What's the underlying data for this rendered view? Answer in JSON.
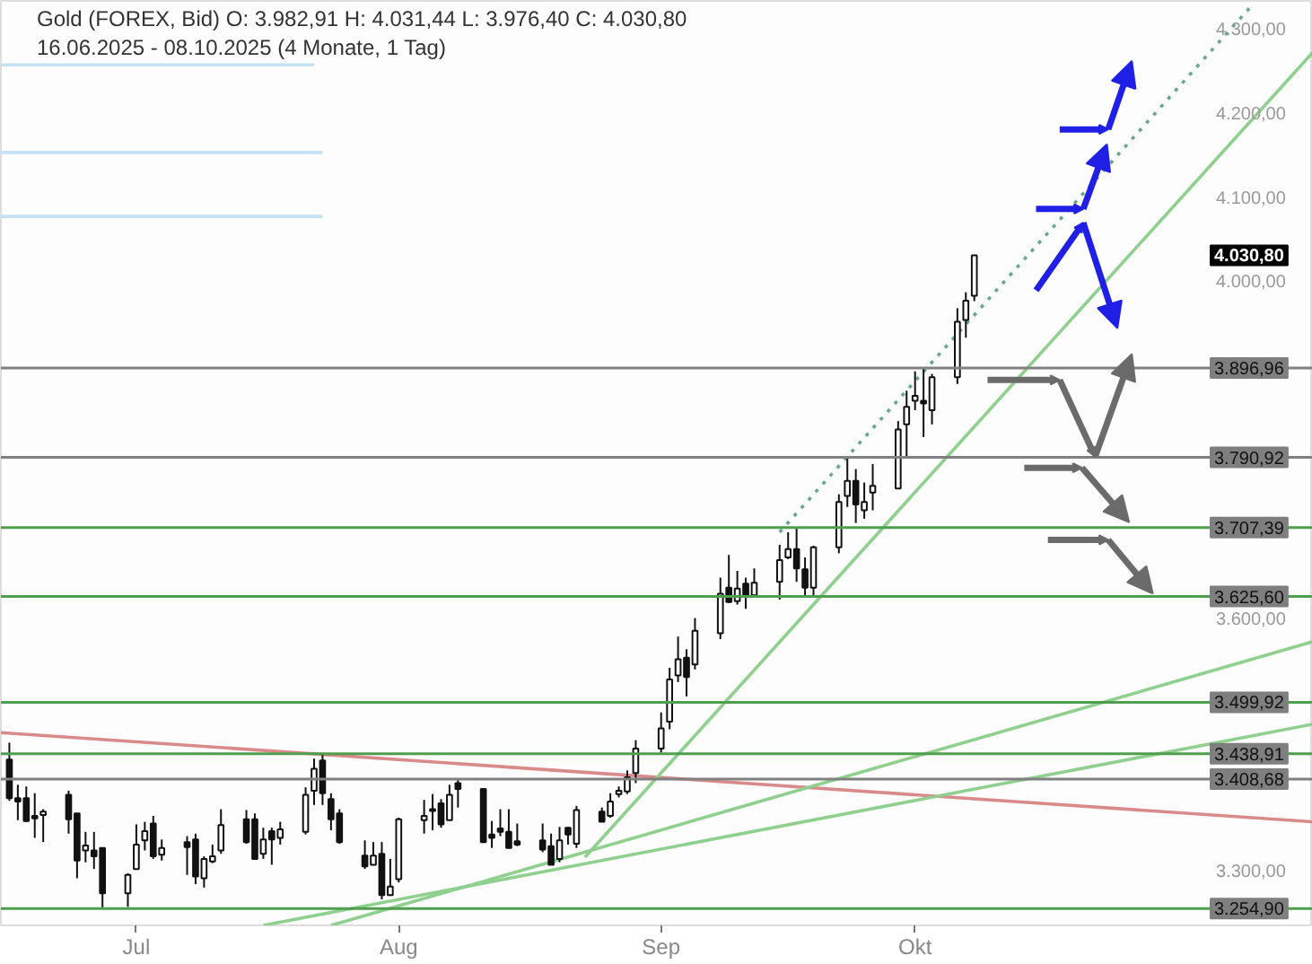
{
  "chart_data": {
    "type": "candlestick",
    "title": "Gold (FOREX, Bid)  O: 3.982,91  H: 4.031,44  L: 3.976,40  C: 4.030,80",
    "subtitle": "16.06.2025 - 08.10.2025   (4 Monate, 1 Tag)",
    "x": [
      "2025-06-16",
      "2025-06-17",
      "2025-06-18",
      "2025-06-19",
      "2025-06-20",
      "2025-06-23",
      "2025-06-24",
      "2025-06-25",
      "2025-06-26",
      "2025-06-27",
      "2025-06-30",
      "2025-07-01",
      "2025-07-02",
      "2025-07-03",
      "2025-07-04",
      "2025-07-07",
      "2025-07-08",
      "2025-07-09",
      "2025-07-10",
      "2025-07-11",
      "2025-07-14",
      "2025-07-15",
      "2025-07-16",
      "2025-07-17",
      "2025-07-18",
      "2025-07-21",
      "2025-07-22",
      "2025-07-23",
      "2025-07-24",
      "2025-07-25",
      "2025-07-28",
      "2025-07-29",
      "2025-07-30",
      "2025-07-31",
      "2025-08-01",
      "2025-08-04",
      "2025-08-05",
      "2025-08-06",
      "2025-08-07",
      "2025-08-08",
      "2025-08-11",
      "2025-08-12",
      "2025-08-13",
      "2025-08-14",
      "2025-08-15",
      "2025-08-18",
      "2025-08-19",
      "2025-08-20",
      "2025-08-21",
      "2025-08-22",
      "2025-08-25",
      "2025-08-26",
      "2025-08-27",
      "2025-08-28",
      "2025-08-29",
      "2025-09-01",
      "2025-09-02",
      "2025-09-03",
      "2025-09-04",
      "2025-09-05",
      "2025-09-08",
      "2025-09-09",
      "2025-09-10",
      "2025-09-11",
      "2025-09-12",
      "2025-09-15",
      "2025-09-16",
      "2025-09-17",
      "2025-09-18",
      "2025-09-19",
      "2025-09-22",
      "2025-09-23",
      "2025-09-24",
      "2025-09-25",
      "2025-09-26",
      "2025-09-29",
      "2025-09-30",
      "2025-10-01",
      "2025-10-02",
      "2025-10-03",
      "2025-10-06",
      "2025-10-07",
      "2025-10-08"
    ],
    "ohlc": [
      [
        3432,
        3452,
        3383,
        3386
      ],
      [
        3386,
        3402,
        3360,
        3382
      ],
      [
        3386,
        3400,
        3358,
        3359
      ],
      [
        3365,
        3392,
        3339,
        3362
      ],
      [
        3366,
        3373,
        3334,
        3370
      ],
      [
        3390,
        3395,
        3344,
        3361
      ],
      [
        3368,
        3368,
        3291,
        3312
      ],
      [
        3324,
        3346,
        3310,
        3330
      ],
      [
        3324,
        3346,
        3302,
        3317
      ],
      [
        3327,
        3327,
        3255,
        3273
      ],
      [
        3273,
        3297,
        3257,
        3295
      ],
      [
        3302,
        3355,
        3302,
        3331
      ],
      [
        3336,
        3358,
        3324,
        3347
      ],
      [
        3356,
        3365,
        3314,
        3317
      ],
      [
        3319,
        3337,
        3312,
        3327
      ],
      [
        3334,
        3341,
        3295,
        3328
      ],
      [
        3337,
        3344,
        3284,
        3293
      ],
      [
        3291,
        3317,
        3280,
        3314
      ],
      [
        3311,
        3331,
        3309,
        3317
      ],
      [
        3324,
        3373,
        3320,
        3354
      ],
      [
        3361,
        3372,
        3332,
        3334
      ],
      [
        3361,
        3368,
        3314,
        3314
      ],
      [
        3320,
        3351,
        3314,
        3337
      ],
      [
        3347,
        3351,
        3307,
        3337
      ],
      [
        3339,
        3358,
        3331,
        3349
      ],
      [
        3346,
        3399,
        3343,
        3390
      ],
      [
        3395,
        3433,
        3378,
        3421
      ],
      [
        3431,
        3439,
        3378,
        3392
      ],
      [
        3385,
        3392,
        3348,
        3361
      ],
      [
        3368,
        3373,
        3332,
        3334
      ],
      [
        3318,
        3336,
        3302,
        3305
      ],
      [
        3307,
        3334,
        3307,
        3318
      ],
      [
        3320,
        3334,
        3266,
        3271
      ],
      [
        3271,
        3314,
        3271,
        3281
      ],
      [
        3290,
        3363,
        3286,
        3361
      ],
      [
        3360,
        3384,
        3344,
        3365
      ],
      [
        3371,
        3391,
        3348,
        3373
      ],
      [
        3380,
        3385,
        3351,
        3355
      ],
      [
        3360,
        3402,
        3360,
        3390
      ],
      [
        3404,
        3409,
        3375,
        3397
      ],
      [
        3397,
        3397,
        3334,
        3334
      ],
      [
        3343,
        3359,
        3327,
        3339
      ],
      [
        3350,
        3373,
        3341,
        3346
      ],
      [
        3346,
        3373,
        3327,
        3327
      ],
      [
        3335,
        3356,
        3329,
        3331
      ],
      [
        3336,
        3356,
        3322,
        3325
      ],
      [
        3329,
        3344,
        3307,
        3307
      ],
      [
        3314,
        3352,
        3310,
        3336
      ],
      [
        3351,
        3352,
        3331,
        3343
      ],
      [
        3332,
        3377,
        3327,
        3372
      ],
      [
        3370,
        3375,
        3358,
        3358
      ],
      [
        3365,
        3392,
        3363,
        3382
      ],
      [
        3391,
        3400,
        3387,
        3395
      ],
      [
        3394,
        3419,
        3391,
        3411
      ],
      [
        3416,
        3455,
        3404,
        3445
      ],
      [
        3445,
        3488,
        3440,
        3469
      ],
      [
        3477,
        3541,
        3468,
        3527
      ],
      [
        3532,
        3578,
        3524,
        3551
      ],
      [
        3553,
        3563,
        3507,
        3530
      ],
      [
        3545,
        3600,
        3539,
        3585
      ],
      [
        3582,
        3648,
        3575,
        3629
      ],
      [
        3636,
        3675,
        3618,
        3619
      ],
      [
        3620,
        3656,
        3616,
        3635
      ],
      [
        3641,
        3648,
        3611,
        3627
      ],
      [
        3627,
        3659,
        3625,
        3642
      ],
      [
        3643,
        3687,
        3622,
        3669
      ],
      [
        3672,
        3702,
        3670,
        3682
      ],
      [
        3682,
        3707,
        3643,
        3659
      ],
      [
        3658,
        3672,
        3626,
        3636
      ],
      [
        3636,
        3686,
        3626,
        3684
      ],
      [
        3684,
        3747,
        3677,
        3738
      ],
      [
        3745,
        3791,
        3732,
        3763
      ],
      [
        3763,
        3777,
        3713,
        3735
      ],
      [
        3728,
        3761,
        3718,
        3738
      ],
      [
        3749,
        3783,
        3728,
        3757
      ],
      [
        3754,
        3834,
        3754,
        3824
      ],
      [
        3830,
        3870,
        3790,
        3851
      ],
      [
        3858,
        3893,
        3847,
        3864
      ],
      [
        3858,
        3897,
        3815,
        3855
      ],
      [
        3847,
        3890,
        3830,
        3886
      ],
      [
        3886,
        3968,
        3878,
        3952
      ],
      [
        3954,
        3987,
        3933,
        3977
      ],
      [
        3982.91,
        4031.44,
        3976.4,
        4030.8
      ]
    ],
    "series": [
      {
        "type": "line",
        "color": "#c5e2f5",
        "x": [
          "2025-06-15",
          "2025-07-22"
        ],
        "values": [
          4257,
          4257
        ]
      },
      {
        "type": "line",
        "color": "#c5e2f5",
        "x": [
          "2025-06-15",
          "2025-07-23"
        ],
        "values": [
          4153,
          4153
        ]
      },
      {
        "type": "line",
        "color": "#c5e2f5",
        "x": [
          "2025-06-15",
          "2025-07-23"
        ],
        "values": [
          4077,
          4077
        ]
      },
      {
        "type": "line",
        "color": "#d98a8a",
        "x": [
          "2025-06-15",
          "2025-11-17"
        ],
        "values": [
          3464,
          3358
        ]
      },
      {
        "type": "line",
        "color": "#8fd08f",
        "x": [
          "2025-07-24",
          "2025-11-17"
        ],
        "values": [
          3235,
          3572
        ]
      },
      {
        "type": "line",
        "color": "#8fd08f",
        "x": [
          "2025-07-16",
          "2025-11-17"
        ],
        "values": [
          3235,
          3474
        ]
      },
      {
        "type": "line",
        "color": "#8fd08f",
        "x": [
          "2025-08-23",
          "2025-11-17"
        ],
        "values": [
          3316,
          4272
        ]
      },
      {
        "type": "line",
        "color": "#6aa88a",
        "line_style": "dotted",
        "x": [
          "2025-09-15",
          "2025-11-10"
        ],
        "values": [
          3702,
          4330
        ]
      }
    ],
    "xlim": [
      "2025-06-15",
      "2025-11-17"
    ],
    "ylim": [
      3235,
      4333
    ],
    "xticks": [
      {
        "value": "2025-07-01",
        "label": "Jul"
      },
      {
        "value": "2025-08-01",
        "label": "Aug"
      },
      {
        "value": "2025-09-01",
        "label": "Sep"
      },
      {
        "value": "2025-10-01",
        "label": "Okt"
      }
    ],
    "yticks": [
      {
        "value": 3300,
        "label": "3.300,00"
      },
      {
        "value": 3600,
        "label": "3.600,00"
      },
      {
        "value": 4000,
        "label": "4.000,00"
      },
      {
        "value": 4100,
        "label": "4.100,00"
      },
      {
        "value": 4200,
        "label": "4.200,00"
      },
      {
        "value": 4300,
        "label": "4.300,00"
      }
    ],
    "ref_lines": [
      {
        "axis": "y",
        "value": 3896.96,
        "label": "3.896,96",
        "color": "#808080"
      },
      {
        "axis": "y",
        "value": 3790.92,
        "label": "3.790,92",
        "color": "#808080"
      },
      {
        "axis": "y",
        "value": 3707.39,
        "label": "3.707,39",
        "color": "#4f9e4f"
      },
      {
        "axis": "y",
        "value": 3625.6,
        "label": "3.625,60",
        "color": "#4f9e4f"
      },
      {
        "axis": "y",
        "value": 3499.92,
        "label": "3.499,92",
        "color": "#4f9e4f"
      },
      {
        "axis": "y",
        "value": 3438.91,
        "label": "3.438,91",
        "color": "#4f9e4f"
      },
      {
        "axis": "y",
        "value": 3408.68,
        "label": "3.408,68",
        "color": "#808080"
      },
      {
        "axis": "y",
        "value": 3254.9,
        "label": "3.254,90",
        "color": "#4f9e4f"
      }
    ],
    "annotations": [
      "4.030,80"
    ]
  }
}
